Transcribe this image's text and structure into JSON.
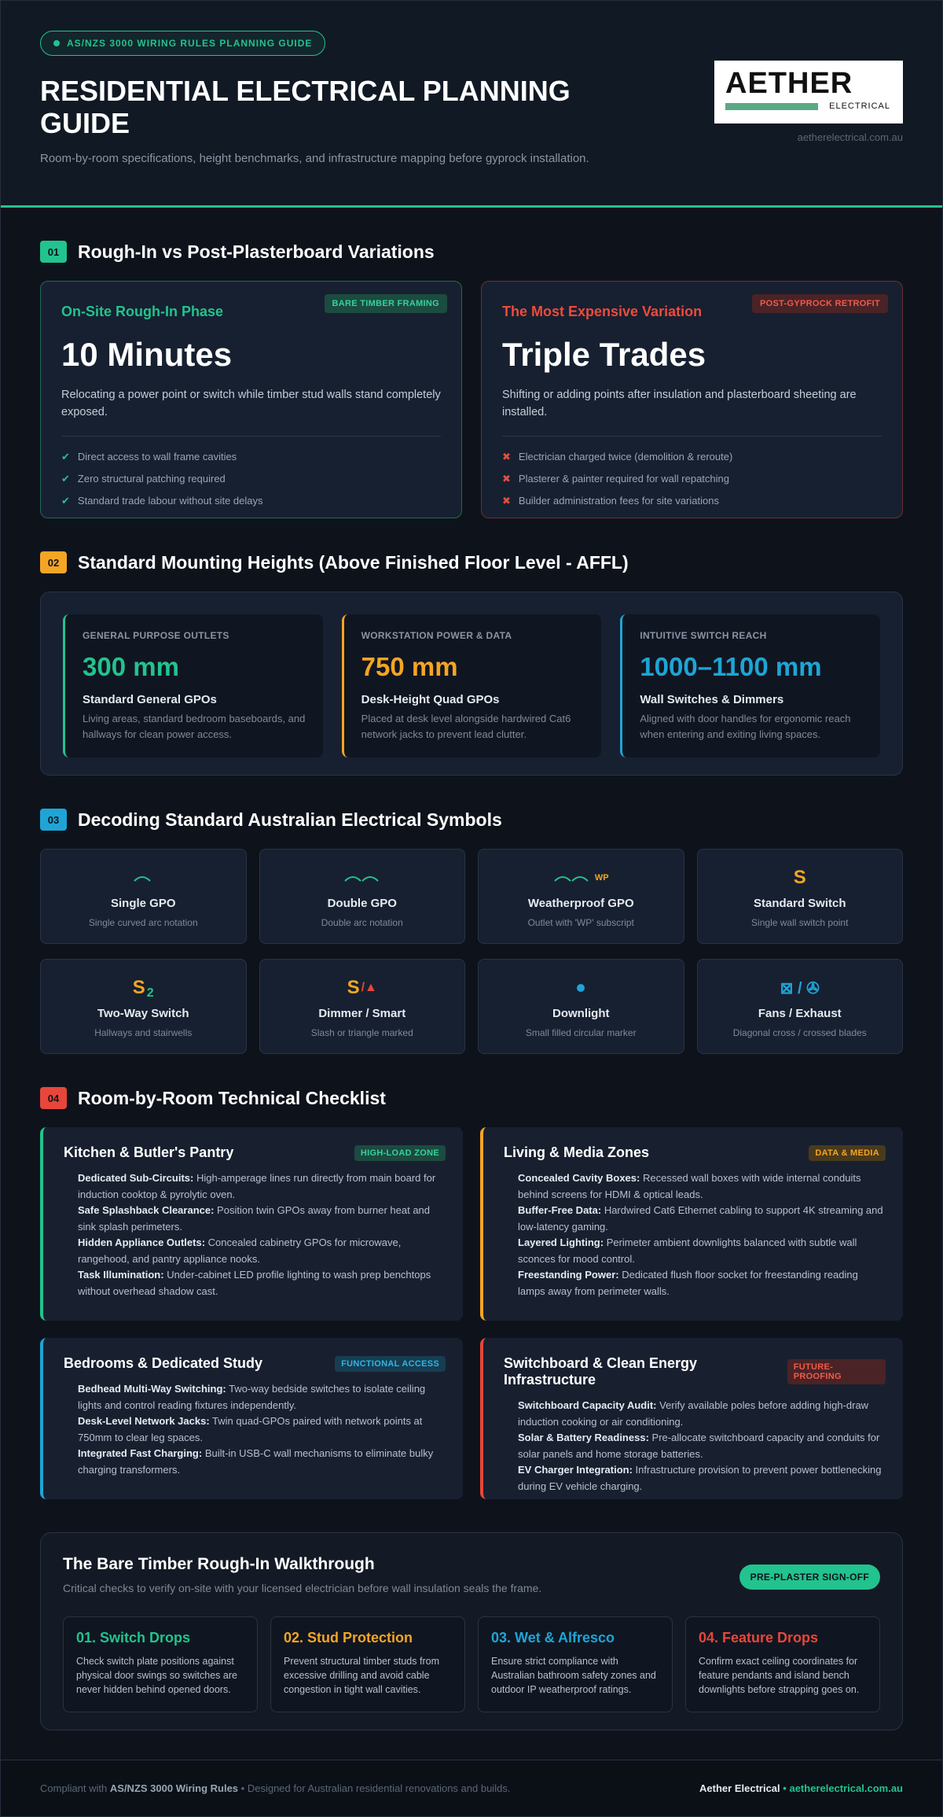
{
  "header": {
    "badge": "AS/NZS 3000 WIRING RULES PLANNING GUIDE",
    "title": "RESIDENTIAL ELECTRICAL PLANNING GUIDE",
    "subtitle": "Room-by-room specifications, height benchmarks, and infrastructure mapping before gyprock installation.",
    "logo_main": "AETHER",
    "logo_sub": "ELECTRICAL",
    "url": "aetherelectrical.com.au"
  },
  "section1": {
    "number": "01",
    "title": "Rough-In vs Post-Plasterboard Variations",
    "cards": [
      {
        "label": "On-Site Rough-In Phase",
        "tag": "BARE TIMBER FRAMING",
        "big": "10 Minutes",
        "desc": "Relocating a power point or switch while timber stud walls stand completely exposed.",
        "marker": "✔",
        "items": [
          "Direct access to wall frame cavities",
          "Zero structural patching required",
          "Standard trade labour without site delays"
        ]
      },
      {
        "label": "The Most Expensive Variation",
        "tag": "POST-GYPROCK RETROFIT",
        "big": "Triple Trades",
        "desc": "Shifting or adding points after insulation and plasterboard sheeting are installed.",
        "marker": "✖",
        "items": [
          "Electrician charged twice (demolition & reroute)",
          "Plasterer & painter required for wall repatching",
          "Builder administration fees for site variations"
        ]
      }
    ]
  },
  "section2": {
    "number": "02",
    "title": "Standard Mounting Heights (Above Finished Floor Level - AFFL)",
    "cards": [
      {
        "label": "GENERAL PURPOSE OUTLETS",
        "value": "300 mm",
        "subtitle": "Standard General GPOs",
        "desc": "Living areas, standard bedroom baseboards, and hallways for clean power access."
      },
      {
        "label": "WORKSTATION POWER & DATA",
        "value": "750 mm",
        "subtitle": "Desk-Height Quad GPOs",
        "desc": "Placed at desk level alongside hardwired Cat6 network jacks to prevent lead clutter."
      },
      {
        "label": "INTUITIVE SWITCH REACH",
        "value": "1000–1100 mm",
        "subtitle": "Wall Switches & Dimmers",
        "desc": "Aligned with door handles for ergonomic reach when entering and exiting living spaces."
      }
    ]
  },
  "section3": {
    "number": "03",
    "title": "Decoding Standard Australian Electrical Symbols",
    "symbols": [
      {
        "name": "Single GPO",
        "desc": "Single curved arc notation"
      },
      {
        "name": "Double GPO",
        "desc": "Double arc notation"
      },
      {
        "icon_extra": "WP",
        "name": "Weatherproof GPO",
        "desc": "Outlet with 'WP' subscript"
      },
      {
        "icon": "S",
        "name": "Standard Switch",
        "desc": "Single wall switch point"
      },
      {
        "icon": "S",
        "icon_sub": "2",
        "name": "Two-Way Switch",
        "desc": "Hallways and stairwells"
      },
      {
        "icon": "S",
        "icon_extra": "/▲",
        "name": "Dimmer / Smart",
        "desc": "Slash or triangle marked"
      },
      {
        "name": "Downlight",
        "desc": "Small filled circular marker"
      },
      {
        "icon": "⊠ / ✇",
        "name": "Fans / Exhaust",
        "desc": "Diagonal cross / crossed blades"
      }
    ]
  },
  "section4": {
    "number": "04",
    "title": "Room-by-Room Technical Checklist",
    "cards": [
      {
        "title": "Kitchen & Butler's Pantry",
        "tag": "HIGH-LOAD ZONE",
        "items": [
          {
            "term": "Dedicated Sub-Circuits:",
            "text": "High-amperage lines run directly from main board for induction cooktop & pyrolytic oven."
          },
          {
            "term": "Safe Splashback Clearance:",
            "text": "Position twin GPOs away from burner heat and sink splash perimeters."
          },
          {
            "term": "Hidden Appliance Outlets:",
            "text": "Concealed cabinetry GPOs for microwave, rangehood, and pantry appliance nooks."
          },
          {
            "term": "Task Illumination:",
            "text": "Under-cabinet LED profile lighting to wash prep benchtops without overhead shadow cast."
          }
        ]
      },
      {
        "title": "Living & Media Zones",
        "tag": "DATA & MEDIA",
        "items": [
          {
            "term": "Concealed Cavity Boxes:",
            "text": "Recessed wall boxes with wide internal conduits behind screens for HDMI & optical leads."
          },
          {
            "term": "Buffer-Free Data:",
            "text": "Hardwired Cat6 Ethernet cabling to support 4K streaming and low-latency gaming."
          },
          {
            "term": "Layered Lighting:",
            "text": "Perimeter ambient downlights balanced with subtle wall sconces for mood control."
          },
          {
            "term": "Freestanding Power:",
            "text": "Dedicated flush floor socket for freestanding reading lamps away from perimeter walls."
          }
        ]
      },
      {
        "title": "Bedrooms & Dedicated Study",
        "tag": "FUNCTIONAL ACCESS",
        "items": [
          {
            "term": "Bedhead Multi-Way Switching:",
            "text": "Two-way bedside switches to isolate ceiling lights and control reading fixtures independently."
          },
          {
            "term": "Desk-Level Network Jacks:",
            "text": "Twin quad-GPOs paired with network points at 750mm to clear leg spaces."
          },
          {
            "term": "Integrated Fast Charging:",
            "text": "Built-in USB-C wall mechanisms to eliminate bulky charging transformers."
          }
        ]
      },
      {
        "title": "Switchboard & Clean Energy Infrastructure",
        "tag": "FUTURE-PROOFING",
        "items": [
          {
            "term": "Switchboard Capacity Audit:",
            "text": "Verify available poles before adding high-draw induction cooking or air conditioning."
          },
          {
            "term": "Solar & Battery Readiness:",
            "text": "Pre-allocate switchboard capacity and conduits for solar panels and home storage batteries."
          },
          {
            "term": "EV Charger Integration:",
            "text": "Infrastructure provision to prevent power bottlenecking during EV vehicle charging."
          }
        ]
      }
    ]
  },
  "walkthrough": {
    "title": "The Bare Timber Rough-In Walkthrough",
    "subtitle": "Critical checks to verify on-site with your licensed electrician before wall insulation seals the frame.",
    "tag": "PRE-PLASTER SIGN-OFF",
    "steps": [
      {
        "title": "01. Switch Drops",
        "text": "Check switch plate positions against physical door swings so switches are never hidden behind opened doors."
      },
      {
        "title": "02. Stud Protection",
        "text": "Prevent structural timber studs from excessive drilling and avoid cable congestion in tight wall cavities."
      },
      {
        "title": "03. Wet & Alfresco",
        "text": "Ensure strict compliance with Australian bathroom safety zones and outdoor IP weatherproof ratings."
      },
      {
        "title": "04. Feature Drops",
        "text": "Confirm exact ceiling coordinates for feature pendants and island bench downlights before strapping goes on."
      }
    ]
  },
  "footer": {
    "left_prefix": "Compliant with",
    "left_strong": "AS/NZS 3000 Wiring Rules",
    "left_suffix": "• Designed for Australian residential renovations and builds.",
    "brand": "Aether Electrical",
    "separator": "•",
    "url": "aetherelectrical.com.au"
  }
}
